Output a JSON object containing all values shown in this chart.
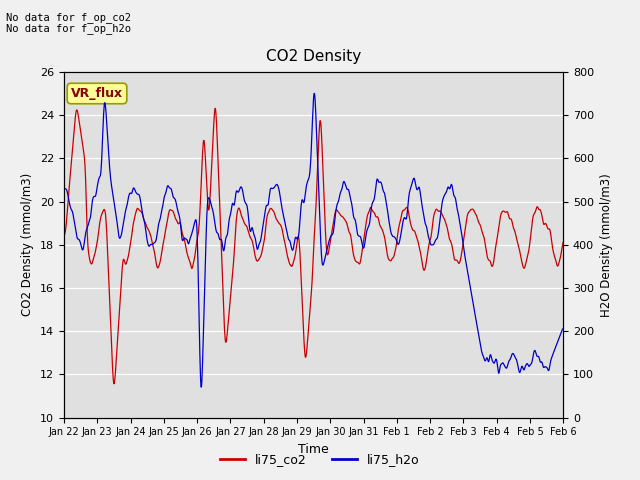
{
  "title": "CO2 Density",
  "xlabel": "Time",
  "ylabel_left": "CO2 Density (mmol/m3)",
  "ylabel_right": "H2O Density (mmol/m3)",
  "annotation_line1": "No data for f_op_co2",
  "annotation_line2": "No data for f_op_h2o",
  "legend_label_co2": "li75_co2",
  "legend_label_h2o": "li75_h2o",
  "vr_flux_label": "VR_flux",
  "color_co2": "#cc0000",
  "color_h2o": "#0000cc",
  "ylim_left": [
    10,
    26
  ],
  "ylim_right": [
    0,
    800
  ],
  "yticks_left": [
    10,
    12,
    14,
    16,
    18,
    20,
    22,
    24,
    26
  ],
  "yticks_right": [
    0,
    100,
    200,
    300,
    400,
    500,
    600,
    700,
    800
  ],
  "bg_color": "#e0e0e0",
  "fig_bg": "#f0f0f0",
  "xtick_labels": [
    "Jan 22",
    "Jan 23",
    "Jan 24",
    "Jan 25",
    "Jan 26",
    "Jan 27",
    "Jan 28",
    "Jan 29",
    "Jan 30",
    "Jan 31",
    "Feb 1",
    "Feb 2",
    "Feb 3",
    "Feb 4",
    "Feb 5",
    "Feb 6"
  ],
  "n_points": 1500
}
